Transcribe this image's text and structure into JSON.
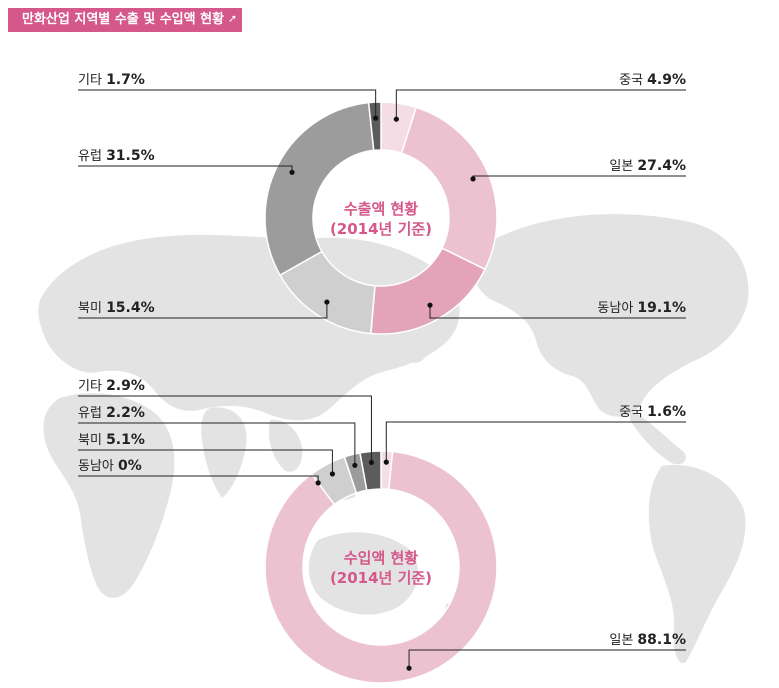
{
  "header": {
    "title": "만화산업 지역별 수출 및 수입액 현황"
  },
  "chart_data": [
    {
      "type": "donut",
      "center_label": [
        "수출액 현황",
        "(2014년 기준)"
      ],
      "slices": [
        {
          "name": "중국",
          "value": 4.9,
          "value_label": "4.9%",
          "color": "#f5dde5"
        },
        {
          "name": "일본",
          "value": 27.4,
          "value_label": "27.4%",
          "color": "#ecc2d0"
        },
        {
          "name": "동남아",
          "value": 19.1,
          "value_label": "19.1%",
          "color": "#e3a4ba"
        },
        {
          "name": "북미",
          "value": 15.4,
          "value_label": "15.4%",
          "color": "#cfcfcf"
        },
        {
          "name": "유럽",
          "value": 31.5,
          "value_label": "31.5%",
          "color": "#9c9c9c"
        },
        {
          "name": "기타",
          "value": 1.7,
          "value_label": "1.7%",
          "color": "#5c5c5c"
        }
      ]
    },
    {
      "type": "donut",
      "center_label": [
        "수입액 현황",
        "(2014년 기준)"
      ],
      "slices": [
        {
          "name": "중국",
          "value": 1.6,
          "value_label": "1.6%",
          "color": "#f5dde5"
        },
        {
          "name": "일본",
          "value": 88.1,
          "value_label": "88.1%",
          "color": "#ecc2d0"
        },
        {
          "name": "동남아",
          "value": 0,
          "value_label": "0%",
          "color": "#e3a4ba"
        },
        {
          "name": "북미",
          "value": 5.1,
          "value_label": "5.1%",
          "color": "#cfcfcf"
        },
        {
          "name": "유럽",
          "value": 2.2,
          "value_label": "2.2%",
          "color": "#9c9c9c"
        },
        {
          "name": "기타",
          "value": 2.9,
          "value_label": "2.9%",
          "color": "#5c5c5c"
        }
      ]
    }
  ],
  "colors": {
    "accent": "#d4588a",
    "map": "#e2e2e2"
  }
}
